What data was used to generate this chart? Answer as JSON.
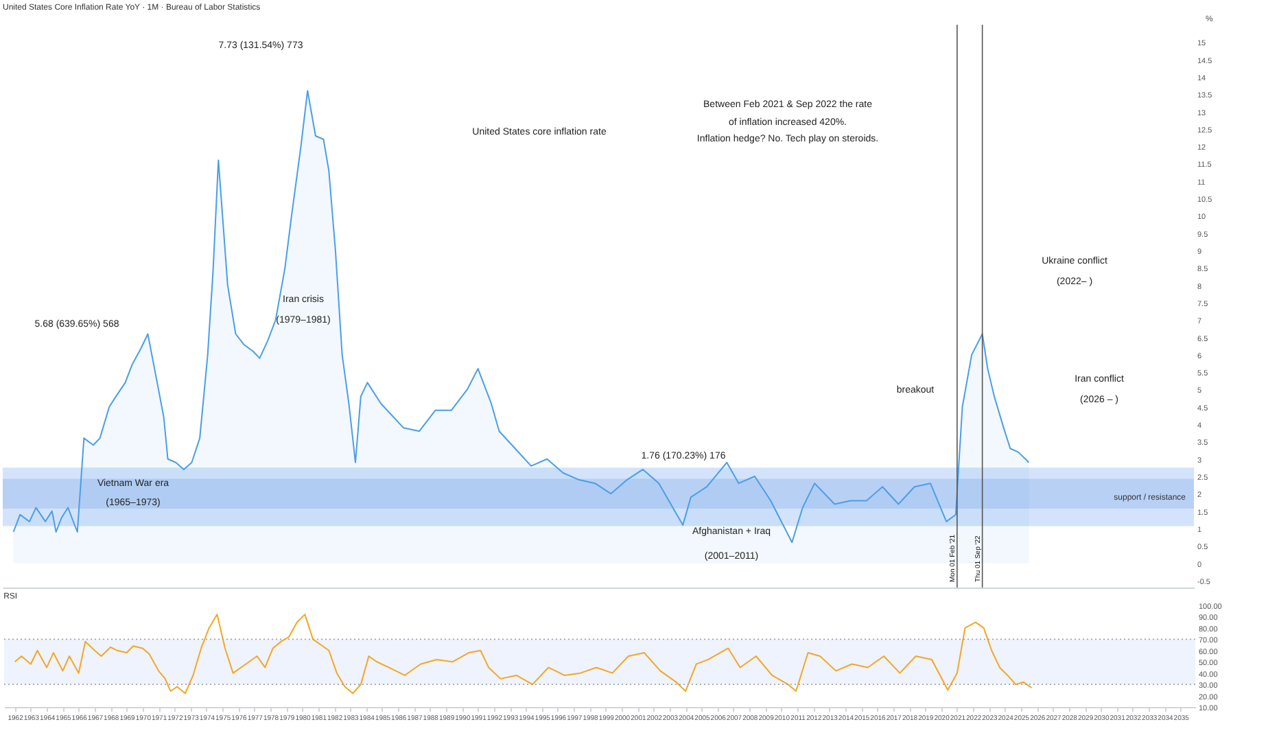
{
  "chart_data": [
    {
      "type": "area",
      "title": "United States Core Inflation Rate YoY · 1M · Bureau of Labor Statistics",
      "ylabel": "%",
      "xlim": [
        "1961-05",
        "2035-12"
      ],
      "ylim": [
        -0.7,
        15.5
      ],
      "yticks": [
        -0.5,
        0,
        0.5,
        1,
        1.5,
        2,
        2.5,
        3,
        3.5,
        4,
        4.5,
        5,
        5.5,
        6,
        6.5,
        7,
        7.5,
        8,
        8.5,
        9,
        9.5,
        10,
        10.5,
        11,
        11.5,
        12,
        12.5,
        13,
        13.5,
        14,
        14.5,
        15
      ],
      "tick_labels": "y",
      "xticks": [
        "1962",
        "1963",
        "1964",
        "1965",
        "1966",
        "1967",
        "1968",
        "1969",
        "1970",
        "1971",
        "1972",
        "1973",
        "1974",
        "1975",
        "1976",
        "1977",
        "1978",
        "1979",
        "1980",
        "1981",
        "1982",
        "1983",
        "1984",
        "1985",
        "1986",
        "1987",
        "1988",
        "1989",
        "1990",
        "1991",
        "1992",
        "1993",
        "1994",
        "1995",
        "1996",
        "1997",
        "1998",
        "1999",
        "2000",
        "2001",
        "2002",
        "2003",
        "2004",
        "2005",
        "2006",
        "2007",
        "2008",
        "2009",
        "2010",
        "2011",
        "2012",
        "2013",
        "2014",
        "2015",
        "2016",
        "2017",
        "2018",
        "2019",
        "2020",
        "2021",
        "2022",
        "2023",
        "2024",
        "2025",
        "2026",
        "2027",
        "2028",
        "2029",
        "2030",
        "2031",
        "2032",
        "2033",
        "2034",
        "2035"
      ],
      "series": [
        {
          "color": "#4a9ee8",
          "x": [
            "1962-01",
            "1962-06",
            "1963-01",
            "1963-06",
            "1964-01",
            "1964-06",
            "1964-09",
            "1965-01",
            "1965-06",
            "1966-01",
            "1966-06",
            "1967-01",
            "1967-06",
            "1968-01",
            "1968-06",
            "1969-01",
            "1969-06",
            "1970-01",
            "1970-06",
            "1971-01",
            "1971-06",
            "1971-09",
            "1972-03",
            "1972-09",
            "1973-03",
            "1973-09",
            "1974-03",
            "1974-07",
            "1974-11",
            "1975-06",
            "1975-12",
            "1976-06",
            "1977-01",
            "1977-06",
            "1977-12",
            "1978-06",
            "1979-01",
            "1979-06",
            "1980-01",
            "1980-06",
            "1980-12",
            "1981-06",
            "1981-10",
            "1982-03",
            "1982-08",
            "1983-01",
            "1983-06",
            "1983-10",
            "1984-03",
            "1985-01",
            "1986-06",
            "1987-06",
            "1988-06",
            "1989-06",
            "1990-06",
            "1991-02",
            "1991-12",
            "1992-06",
            "1993-06",
            "1994-06",
            "1995-06",
            "1996-06",
            "1997-06",
            "1998-06",
            "1999-06",
            "2000-06",
            "2001-06",
            "2002-06",
            "2003-06",
            "2003-12",
            "2004-06",
            "2005-06",
            "2006-09",
            "2007-06",
            "2008-06",
            "2009-06",
            "2010-10",
            "2011-06",
            "2012-03",
            "2013-06",
            "2014-06",
            "2015-06",
            "2016-06",
            "2017-06",
            "2018-06",
            "2019-06",
            "2020-06",
            "2021-01",
            "2021-06",
            "2022-01",
            "2022-09",
            "2023-01",
            "2023-06",
            "2024-01",
            "2024-06",
            "2024-12",
            "2025-08"
          ],
          "values": [
            0.9,
            1.4,
            1.2,
            1.6,
            1.2,
            1.5,
            0.9,
            1.3,
            1.6,
            0.9,
            3.6,
            3.4,
            3.6,
            4.5,
            4.8,
            5.2,
            5.7,
            6.2,
            6.6,
            5.2,
            4.2,
            3.0,
            2.9,
            2.7,
            2.9,
            3.6,
            6.0,
            8.4,
            11.6,
            8.0,
            6.6,
            6.3,
            6.1,
            5.9,
            6.4,
            7.0,
            8.5,
            10.0,
            12.0,
            13.6,
            12.3,
            12.2,
            11.3,
            9.0,
            6.0,
            4.6,
            2.9,
            4.8,
            5.2,
            4.6,
            3.9,
            3.8,
            4.4,
            4.4,
            5.0,
            5.6,
            4.6,
            3.8,
            3.3,
            2.8,
            3.0,
            2.6,
            2.4,
            2.3,
            2.0,
            2.4,
            2.7,
            2.3,
            1.5,
            1.1,
            1.9,
            2.2,
            2.9,
            2.3,
            2.5,
            1.8,
            0.6,
            1.6,
            2.3,
            1.7,
            1.8,
            1.8,
            2.2,
            1.7,
            2.2,
            2.3,
            1.2,
            1.4,
            4.5,
            6.0,
            6.6,
            5.6,
            4.8,
            3.9,
            3.3,
            3.2,
            2.9
          ]
        }
      ],
      "bands": [
        {
          "axis": "y",
          "from": 1.07,
          "to": 2.75,
          "color": "#d3e3fb",
          "label": "support / resistance"
        },
        {
          "axis": "y",
          "from": 1.57,
          "to": 2.43,
          "color": "#b9d0f5"
        }
      ],
      "ref_lines": [
        {
          "axis": "x",
          "value": "2021-02",
          "label": "Mon 01 Feb '21",
          "color": "#555555"
        },
        {
          "axis": "x",
          "value": "2022-09",
          "label": "Thu 01 Sep '22",
          "color": "#555555"
        }
      ],
      "annotations": [
        "United States core inflation rate",
        "5.68 (639.65%) 568",
        "7.73 (131.54%) 773",
        "Iran crisis",
        "(1979–1981)",
        "Vietnam War era",
        "(1965–1973)",
        "1.76 (170.23%) 176",
        "Afghanistan + Iraq",
        "(2001–2011)",
        "breakout",
        "Ukraine conflict",
        "(2022– )",
        "Iran conflict",
        "(2026 – )",
        "Between Feb 2021 & Sep 2022 the rate",
        "of inflation increased 420%.",
        "Inflation hedge? No. Tech play on steroids."
      ]
    },
    {
      "type": "line",
      "title": "RSI",
      "xlim": [
        "1961-05",
        "2035-12"
      ],
      "ylim": [
        10,
        100
      ],
      "xticks": [
        "1962",
        "1963",
        "1964",
        "1965",
        "1966",
        "1967",
        "1968",
        "1969",
        "1970",
        "1971",
        "1972",
        "1973",
        "1974",
        "1975",
        "1976",
        "1977",
        "1978",
        "1979",
        "1980",
        "1981",
        "1982",
        "1983",
        "1984",
        "1985",
        "1986",
        "1987",
        "1988",
        "1989",
        "1990",
        "1991",
        "1992",
        "1993",
        "1994",
        "1995",
        "1996",
        "1997",
        "1998",
        "1999",
        "2000",
        "2001",
        "2002",
        "2003",
        "2004",
        "2005",
        "2006",
        "2007",
        "2008",
        "2009",
        "2010",
        "2011",
        "2012",
        "2013",
        "2014",
        "2015",
        "2016",
        "2017",
        "2018",
        "2019",
        "2020",
        "2021",
        "2022",
        "2023",
        "2024",
        "2025",
        "2026",
        "2027",
        "2028",
        "2029",
        "2030",
        "2031",
        "2032",
        "2033",
        "2034",
        "2035"
      ],
      "yticks": [
        {
          "value": 10,
          "label": "10.00"
        },
        {
          "value": 20,
          "label": "20.00"
        },
        {
          "value": 30,
          "label": "30.00"
        },
        {
          "value": 40,
          "label": "40.00"
        },
        {
          "value": 50,
          "label": "50.00"
        },
        {
          "value": 60,
          "label": "60.00"
        },
        {
          "value": 70,
          "label": "70.00"
        },
        {
          "value": 80,
          "label": "80.00"
        },
        {
          "value": 90,
          "label": "90.00"
        },
        {
          "value": 100,
          "label": "100.00"
        }
      ],
      "series": [
        {
          "color": "#f5a623",
          "x": [
            "1962-01",
            "1962-06",
            "1963-01",
            "1963-06",
            "1964-01",
            "1964-06",
            "1965-01",
            "1965-06",
            "1966-01",
            "1966-06",
            "1967-01",
            "1967-06",
            "1968-01",
            "1968-06",
            "1969-01",
            "1969-06",
            "1970-01",
            "1970-06",
            "1971-01",
            "1971-06",
            "1971-10",
            "1972-03",
            "1972-09",
            "1973-03",
            "1973-09",
            "1974-03",
            "1974-09",
            "1975-03",
            "1975-09",
            "1976-03",
            "1976-09",
            "1977-03",
            "1977-09",
            "1978-03",
            "1978-09",
            "1979-03",
            "1979-09",
            "1980-03",
            "1980-09",
            "1981-03",
            "1981-09",
            "1982-03",
            "1982-09",
            "1983-03",
            "1983-09",
            "1984-03",
            "1984-09",
            "1985-06",
            "1986-06",
            "1987-06",
            "1988-06",
            "1989-06",
            "1990-06",
            "1991-03",
            "1991-09",
            "1992-06",
            "1993-06",
            "1994-06",
            "1995-06",
            "1996-06",
            "1997-06",
            "1998-06",
            "1999-06",
            "2000-06",
            "2001-06",
            "2002-06",
            "2003-06",
            "2004-01",
            "2004-09",
            "2005-06",
            "2006-09",
            "2007-06",
            "2008-06",
            "2009-06",
            "2010-06",
            "2010-12",
            "2011-09",
            "2012-06",
            "2013-06",
            "2014-06",
            "2015-06",
            "2016-06",
            "2017-06",
            "2018-06",
            "2019-06",
            "2020-06",
            "2021-01",
            "2021-07",
            "2022-03",
            "2022-09",
            "2023-03",
            "2023-09",
            "2024-03",
            "2024-09",
            "2025-03",
            "2025-09"
          ],
          "values": [
            50,
            55,
            48,
            60,
            45,
            58,
            42,
            55,
            40,
            68,
            60,
            55,
            63,
            60,
            58,
            64,
            62,
            57,
            42,
            35,
            24,
            28,
            22,
            38,
            62,
            80,
            92,
            62,
            40,
            45,
            50,
            55,
            45,
            62,
            68,
            72,
            85,
            92,
            70,
            65,
            60,
            40,
            28,
            22,
            30,
            55,
            50,
            45,
            38,
            48,
            52,
            50,
            58,
            60,
            45,
            35,
            38,
            30,
            45,
            38,
            40,
            45,
            40,
            55,
            58,
            42,
            32,
            24,
            48,
            52,
            62,
            45,
            55,
            38,
            30,
            24,
            58,
            55,
            42,
            48,
            45,
            55,
            40,
            55,
            52,
            25,
            40,
            80,
            85,
            80,
            60,
            45,
            38,
            30,
            32,
            27
          ]
        }
      ],
      "bands": [
        {
          "axis": "y",
          "from": 30,
          "to": 70,
          "color": "#eef3fd"
        }
      ],
      "ref_lines": [
        {
          "axis": "y",
          "value": 70,
          "color": "#9aa4b5",
          "line_style": "dotted"
        },
        {
          "axis": "y",
          "value": 30,
          "color": "#9aa4b5",
          "line_style": "dotted"
        }
      ]
    }
  ]
}
